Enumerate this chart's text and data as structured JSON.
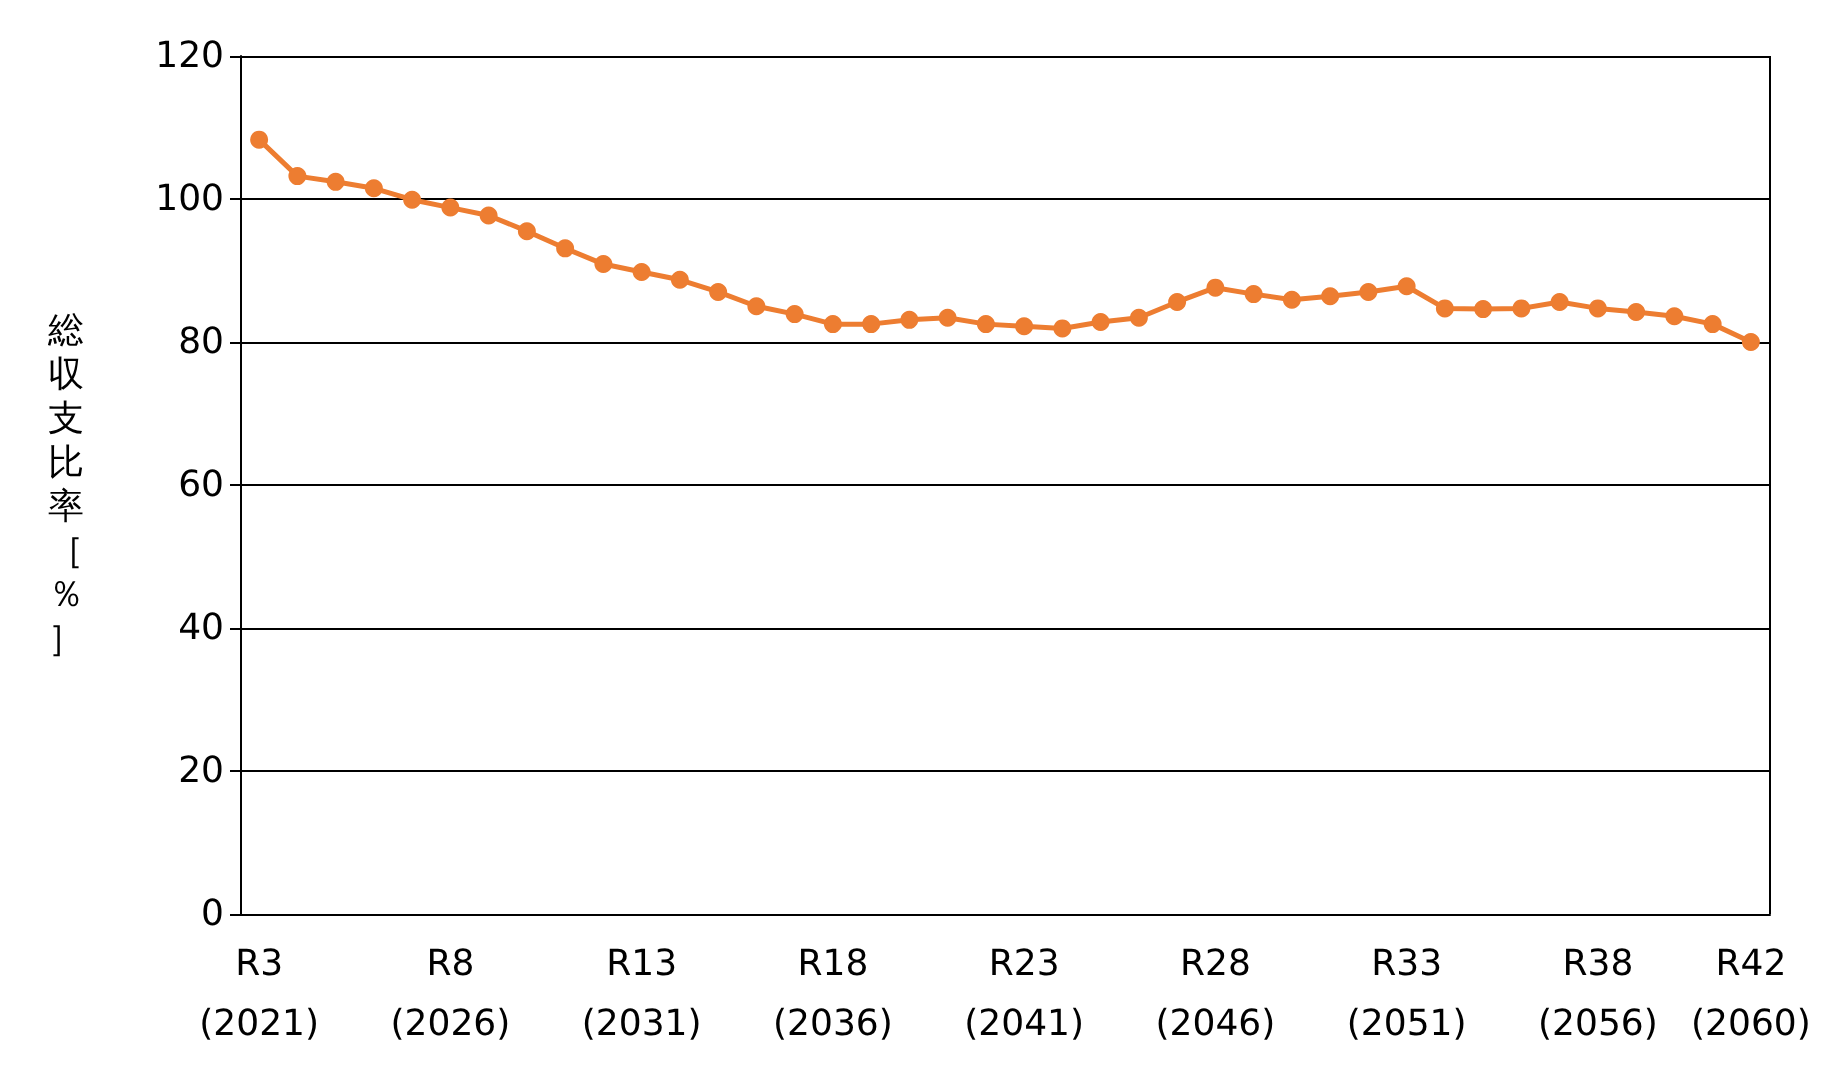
{
  "chart_data": {
    "type": "line",
    "ylabel": "総収支比率［％］",
    "categories": [
      "R3\n(2021)",
      null,
      null,
      null,
      null,
      "R8\n(2026)",
      null,
      null,
      null,
      null,
      "R13\n(2031)",
      null,
      null,
      null,
      null,
      "R18\n(2036)",
      null,
      null,
      null,
      null,
      "R23\n(2041)",
      null,
      null,
      null,
      null,
      "R28\n(2046)",
      null,
      null,
      null,
      null,
      "R33\n(2051)",
      null,
      null,
      null,
      null,
      "R38\n(2056)",
      null,
      null,
      null,
      "R42\n(2060)"
    ],
    "series": [
      {
        "color": "#ed7d31",
        "values": [
          108.3,
          103.2,
          102.4,
          101.5,
          99.9,
          98.8,
          97.7,
          95.5,
          93.1,
          90.9,
          89.8,
          88.7,
          87.0,
          85.0,
          83.9,
          82.5,
          82.5,
          83.1,
          83.4,
          82.5,
          82.2,
          81.9,
          82.8,
          83.4,
          85.6,
          87.6,
          86.7,
          85.9,
          86.4,
          87.0,
          87.8,
          84.7,
          84.6,
          84.7,
          85.6,
          84.7,
          84.2,
          83.6,
          82.5,
          80.0
        ]
      }
    ],
    "ylim": [
      0,
      120
    ],
    "yticks": [
      0,
      20,
      40,
      60,
      80,
      100,
      120
    ],
    "grid": "y",
    "marker": "circle",
    "line_style": "solid"
  }
}
